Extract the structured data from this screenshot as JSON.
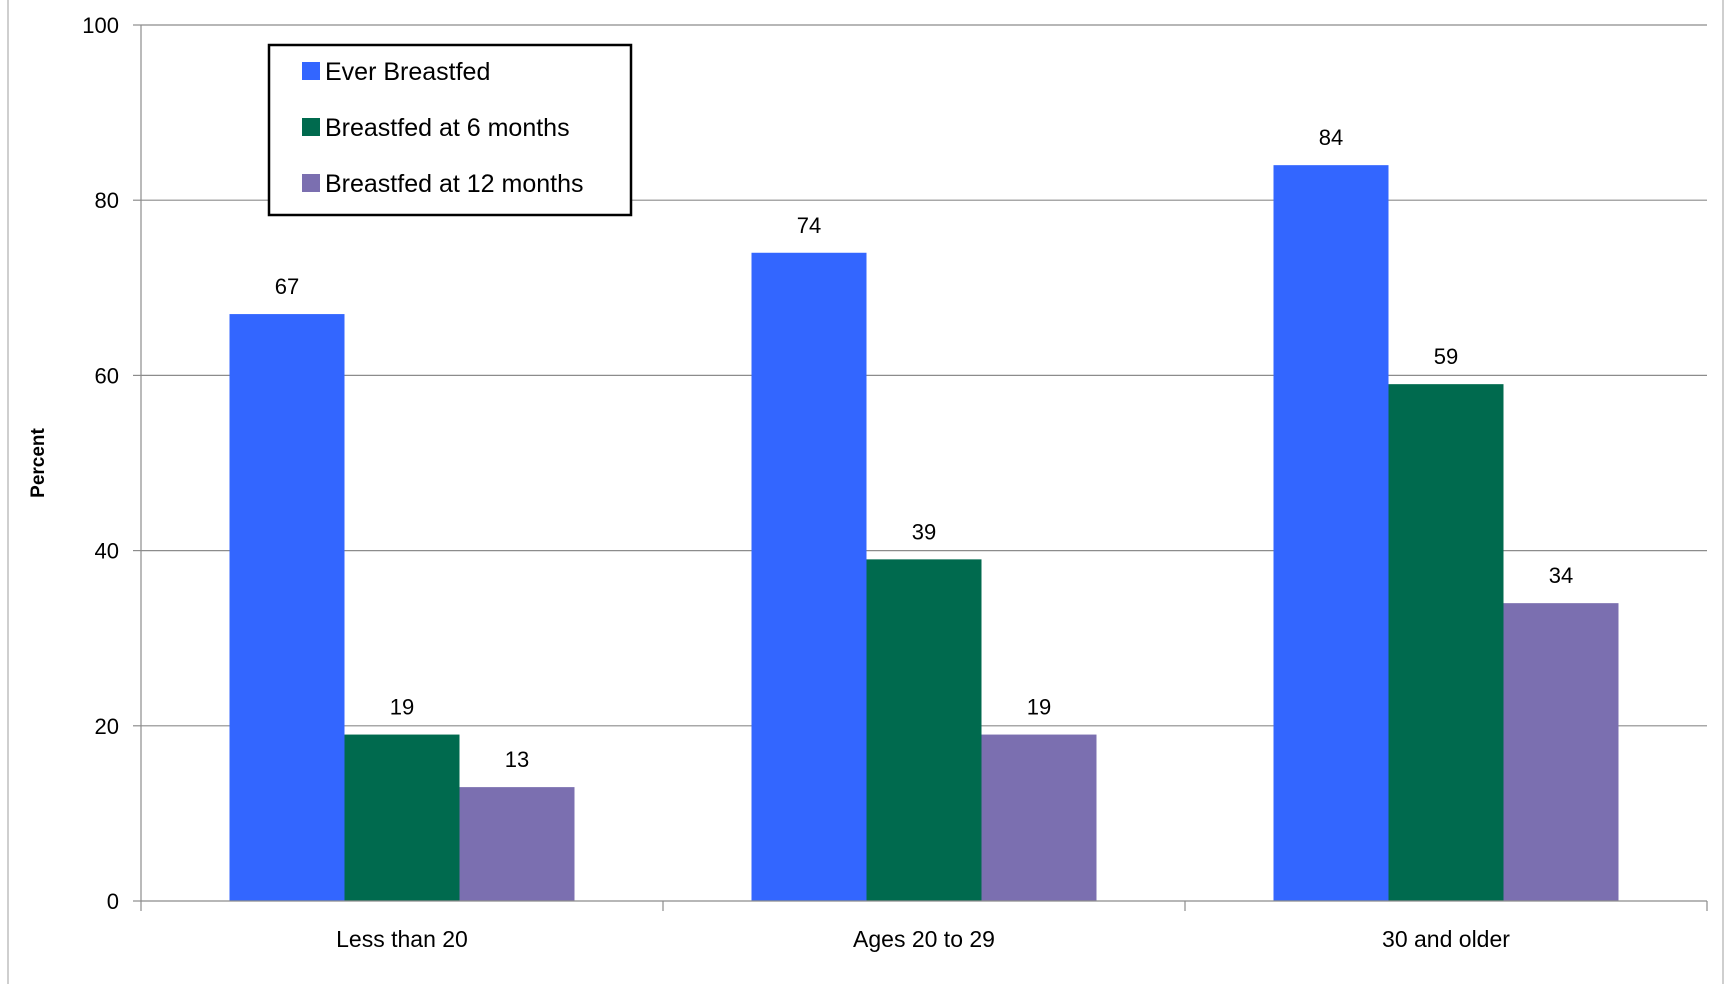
{
  "chart_data": {
    "type": "bar",
    "title": "",
    "xlabel": "",
    "ylabel": "Percent",
    "ylim": [
      0,
      100
    ],
    "yticks": [
      0,
      20,
      40,
      60,
      80,
      100
    ],
    "grid": true,
    "legend_position": "top-left",
    "categories": [
      "Less than 20",
      "Ages 20 to 29",
      "30 and older"
    ],
    "series": [
      {
        "name": "Ever Breastfed",
        "color": "#3366ff",
        "values": [
          67,
          74,
          84
        ],
        "labels": [
          "67",
          "74",
          "84"
        ]
      },
      {
        "name": "Breastfed at 6 months",
        "color": "#006a4e",
        "values": [
          19,
          39,
          59
        ],
        "labels": [
          "19",
          "39",
          "59"
        ]
      },
      {
        "name": "Breastfed at 12 months",
        "color": "#7b6fb0",
        "values": [
          13,
          19,
          34
        ],
        "labels": [
          "13",
          "19",
          "34"
        ]
      }
    ]
  }
}
